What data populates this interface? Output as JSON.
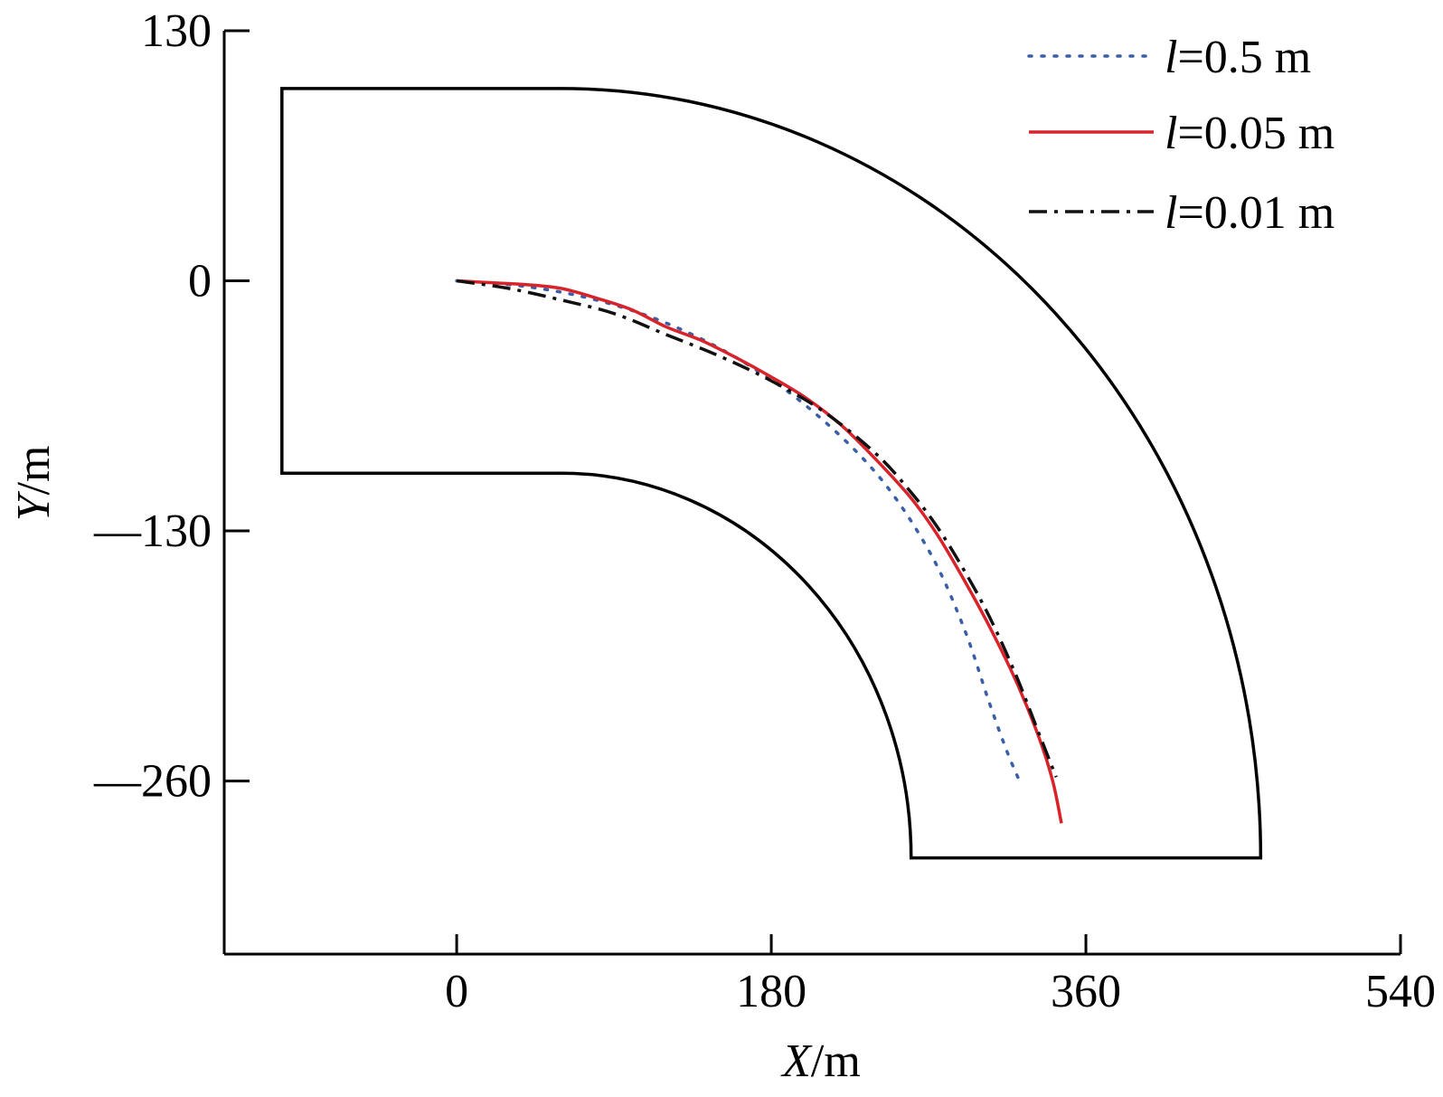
{
  "chart_data": {
    "type": "line",
    "xlabel": {
      "var": "X",
      "unit": "/m"
    },
    "ylabel": {
      "var": "Y",
      "unit": "/m"
    },
    "xlim": [
      -133,
      540
    ],
    "ylim": [
      -350,
      130
    ],
    "xticks": [
      0,
      180,
      360,
      540
    ],
    "yticks": [
      130,
      0,
      -130,
      -260
    ],
    "xtick_labels": [
      "0",
      "180",
      "360",
      "540"
    ],
    "ytick_labels": [
      "130",
      "0",
      "—130",
      "—260"
    ],
    "grid": false,
    "legend_position": "top-right",
    "channel": {
      "color": "#000000",
      "straight_left_x": -100,
      "straight_top_y": 100,
      "straight_bottom_y": -100,
      "bend_start_x": 60,
      "bend_center": [
        60,
        -300
      ],
      "inner_radius": 200,
      "outer_radius": 400,
      "bottom_y": -300
    },
    "series": [
      {
        "name_var": "l",
        "name_value": "=0.5 m",
        "color": "#3a5fa6",
        "style": "dotted",
        "x": [
          0,
          40,
          80,
          120,
          160,
          200,
          240,
          270,
          290,
          305,
          315,
          322
        ],
        "y": [
          0,
          -3,
          -10,
          -22,
          -40,
          -65,
          -100,
          -140,
          -180,
          -220,
          -245,
          -260
        ]
      },
      {
        "name_var": "l",
        "name_value": "=0.05 m",
        "color": "#d9232a",
        "style": "solid",
        "x": [
          0,
          20,
          40,
          60,
          80,
          100,
          120,
          140,
          160,
          180,
          200,
          220,
          240,
          260,
          275,
          290,
          305,
          320,
          333,
          341,
          346
        ],
        "y": [
          0,
          -1,
          -2,
          -4,
          -9,
          -15,
          -24,
          -31,
          -40,
          -50,
          -61,
          -75,
          -93,
          -113,
          -132,
          -155,
          -180,
          -208,
          -237,
          -260,
          -282
        ]
      },
      {
        "name_var": "l",
        "name_value": "=0.01 m",
        "color": "#111111",
        "style": "dashdot",
        "x": [
          0,
          30,
          60,
          90,
          120,
          150,
          180,
          210,
          240,
          260,
          275,
          290,
          305,
          320,
          333,
          343
        ],
        "y": [
          0,
          -4,
          -10,
          -17,
          -28,
          -39,
          -52,
          -68,
          -90,
          -110,
          -128,
          -150,
          -175,
          -205,
          -235,
          -258
        ]
      }
    ]
  }
}
